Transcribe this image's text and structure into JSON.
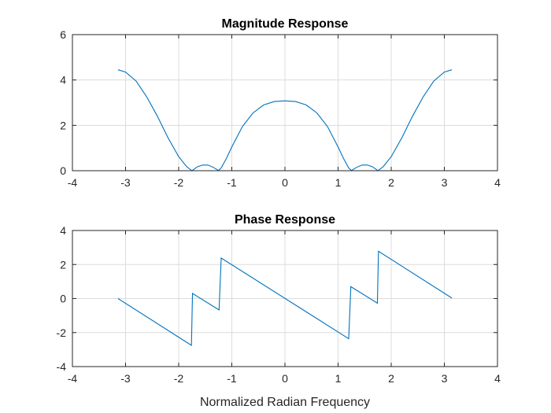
{
  "figure": {
    "background": "#ffffff",
    "axis_color": "#262626",
    "grid_color": "#dcdcdc"
  },
  "chart_data": [
    {
      "type": "line",
      "title": "Magnitude Response",
      "xlabel": "",
      "ylabel": "",
      "xlim": [
        -4,
        4
      ],
      "ylim": [
        0,
        6
      ],
      "xticks": [
        -4,
        -3,
        -2,
        -1,
        0,
        1,
        2,
        3,
        4
      ],
      "yticks": [
        0,
        2,
        4,
        6
      ],
      "xtick_labels": [
        "-4",
        "-3",
        "-2",
        "-1",
        "0",
        "1",
        "2",
        "3",
        "4"
      ],
      "ytick_labels": [
        "0",
        "2",
        "4",
        "6"
      ],
      "grid": true,
      "series": [
        {
          "color": "#0072bd",
          "x": [
            -3.1416,
            -3.0,
            -2.8,
            -2.6,
            -2.4,
            -2.2,
            -2.0,
            -1.85,
            -1.75,
            -1.65,
            -1.55,
            -1.45,
            -1.35,
            -1.25,
            -1.2,
            -1.1,
            -1.0,
            -0.8,
            -0.6,
            -0.4,
            -0.2,
            0.0,
            0.2,
            0.4,
            0.6,
            0.8,
            1.0,
            1.1,
            1.2,
            1.25,
            1.35,
            1.45,
            1.55,
            1.65,
            1.75,
            1.85,
            2.0,
            2.2,
            2.4,
            2.6,
            2.8,
            3.0,
            3.1416
          ],
          "y": [
            4.45,
            4.35,
            3.95,
            3.25,
            2.4,
            1.45,
            0.62,
            0.18,
            0.0,
            0.17,
            0.25,
            0.25,
            0.15,
            0.01,
            0.12,
            0.55,
            1.05,
            1.95,
            2.55,
            2.9,
            3.05,
            3.08,
            3.05,
            2.9,
            2.55,
            1.95,
            1.05,
            0.55,
            0.12,
            0.01,
            0.15,
            0.25,
            0.25,
            0.17,
            0.0,
            0.18,
            0.62,
            1.45,
            2.4,
            3.25,
            3.95,
            4.35,
            4.45
          ]
        }
      ]
    },
    {
      "type": "line",
      "title": "Phase Response",
      "xlabel": "Normalized Radian Frequency",
      "ylabel": "",
      "xlim": [
        -4,
        4
      ],
      "ylim": [
        -4,
        4
      ],
      "xticks": [
        -4,
        -3,
        -2,
        -1,
        0,
        1,
        2,
        3,
        4
      ],
      "yticks": [
        -4,
        -2,
        0,
        2,
        4
      ],
      "xtick_labels": [
        "-4",
        "-3",
        "-2",
        "-1",
        "0",
        "1",
        "2",
        "3",
        "4"
      ],
      "ytick_labels": [
        "-4",
        "-2",
        "0",
        "2",
        "4"
      ],
      "grid": true,
      "series": [
        {
          "color": "#0072bd",
          "x": [
            -3.1416,
            -1.76,
            -1.74,
            -1.24,
            -1.2,
            1.2,
            1.24,
            1.74,
            1.76,
            3.1416
          ],
          "y": [
            0.0,
            -2.75,
            0.3,
            -0.67,
            2.38,
            -2.36,
            0.7,
            -0.27,
            2.78,
            0.03
          ]
        }
      ]
    }
  ]
}
